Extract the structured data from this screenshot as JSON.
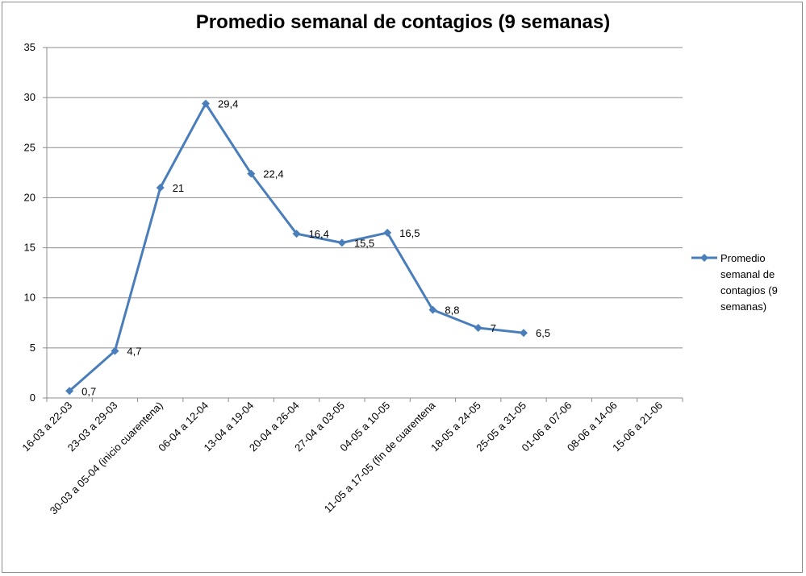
{
  "chart_data": {
    "type": "line",
    "title": "Promedio semanal de contagios (9 semanas)",
    "categories": [
      "16-03 a 22-03",
      "23-03 a 29-03",
      "30-03 a 05-04 (inicio cuarentena)",
      "06-04 a 12-04",
      "13-04 a 19-04",
      "20-04 a 26-04",
      "27-04 a 03-05",
      "04-05 a 10-05",
      "11-05 a 17-05 (fin de cuarentena",
      "18-05 a 24-05",
      "25-05 a 31-05",
      "01-06 a 07-06",
      "08-06 a 14-06",
      "15-06 a 21-06"
    ],
    "series": [
      {
        "name": "Promedio semanal de contagios (9 semanas)",
        "legend_lines": [
          "Promedio",
          "semanal de",
          "contagios (9",
          "semanas)"
        ],
        "values": [
          0.7,
          4.7,
          21,
          29.4,
          22.4,
          16.4,
          15.5,
          16.5,
          8.8,
          7,
          6.5,
          null,
          null,
          null
        ],
        "labels": [
          "0,7",
          "4,7",
          "21",
          "29,4",
          "22,4",
          "16,4",
          "15,5",
          "16,5",
          "8,8",
          "7",
          "6,5",
          "",
          "",
          ""
        ],
        "color": "#4a7ebb"
      }
    ],
    "ylim": [
      0,
      35
    ],
    "yticks": [
      0,
      5,
      10,
      15,
      20,
      25,
      30,
      35
    ],
    "grid": true,
    "legend": "right"
  }
}
